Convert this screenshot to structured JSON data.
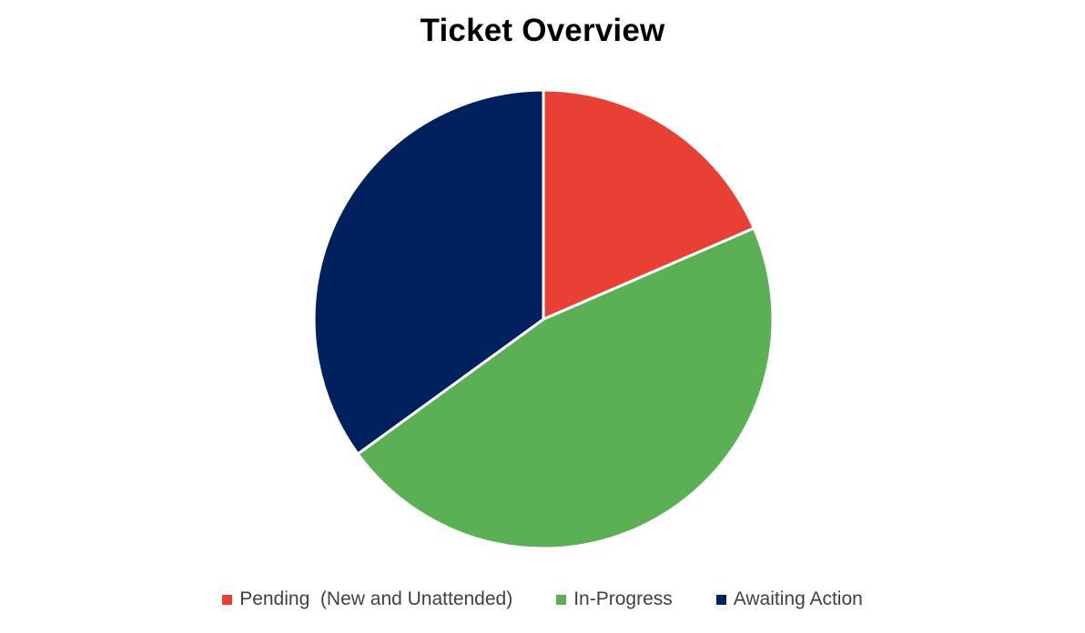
{
  "chart_data": {
    "type": "pie",
    "title": "Ticket Overview",
    "categories": [
      "Pending  (New and Unattended)",
      "In-Progress",
      "Awaiting Action"
    ],
    "values": [
      18.5,
      46.5,
      35.0
    ],
    "colors": [
      "#E84034",
      "#5BB056",
      "#00205E"
    ],
    "legend_position": "bottom",
    "start_angle_deg": 0,
    "direction": "clockwise"
  }
}
